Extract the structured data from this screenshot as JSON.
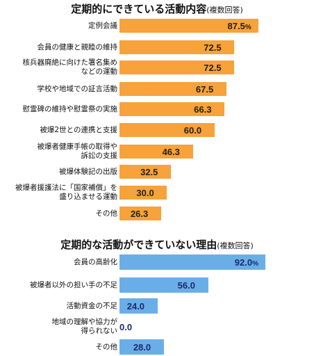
{
  "chart_data": [
    {
      "type": "bar",
      "orientation": "horizontal",
      "title": "定期的にできている活動内容",
      "note": "(複数回答)",
      "categories": [
        "定例会議",
        "会員の健康と親睦の維持",
        "核兵器廃絶に向けた署名集め\nなどの運動",
        "学校や地域での証言活動",
        "慰霊碑の維持や慰霊祭の実施",
        "被爆2世との連携と支援",
        "被爆者健康手帳の取得や\n訴訟の支援",
        "被爆体験記の出版",
        "被爆者援護法に「国家補償」を\n盛り込ませる運動",
        "その他"
      ],
      "values": [
        87.5,
        72.5,
        72.5,
        67.5,
        66.3,
        60.0,
        46.3,
        32.5,
        30.0,
        26.3
      ],
      "value_labels": [
        "87.5",
        "72.5",
        "72.5",
        "67.5",
        "66.3",
        "60.0",
        "46.3",
        "32.5",
        "30.0",
        "26.3"
      ],
      "unit": "%",
      "xlim": [
        0,
        100
      ],
      "bar_color": "#f7a23a"
    },
    {
      "type": "bar",
      "orientation": "horizontal",
      "title": "定期的な活動ができていない理由",
      "note": "(複数回答)",
      "categories": [
        "会員の高齢化",
        "被爆者以外の担い手の不足",
        "活動資金の不足",
        "地域の理解や協力が\n得られない",
        "その他"
      ],
      "values": [
        92.0,
        56.0,
        24.0,
        0.0,
        28.0
      ],
      "value_labels": [
        "92.0",
        "56.0",
        "24.0",
        "0.0",
        "28.0"
      ],
      "unit": "%",
      "xlim": [
        0,
        100
      ],
      "bar_color": "#6aaee8"
    }
  ]
}
